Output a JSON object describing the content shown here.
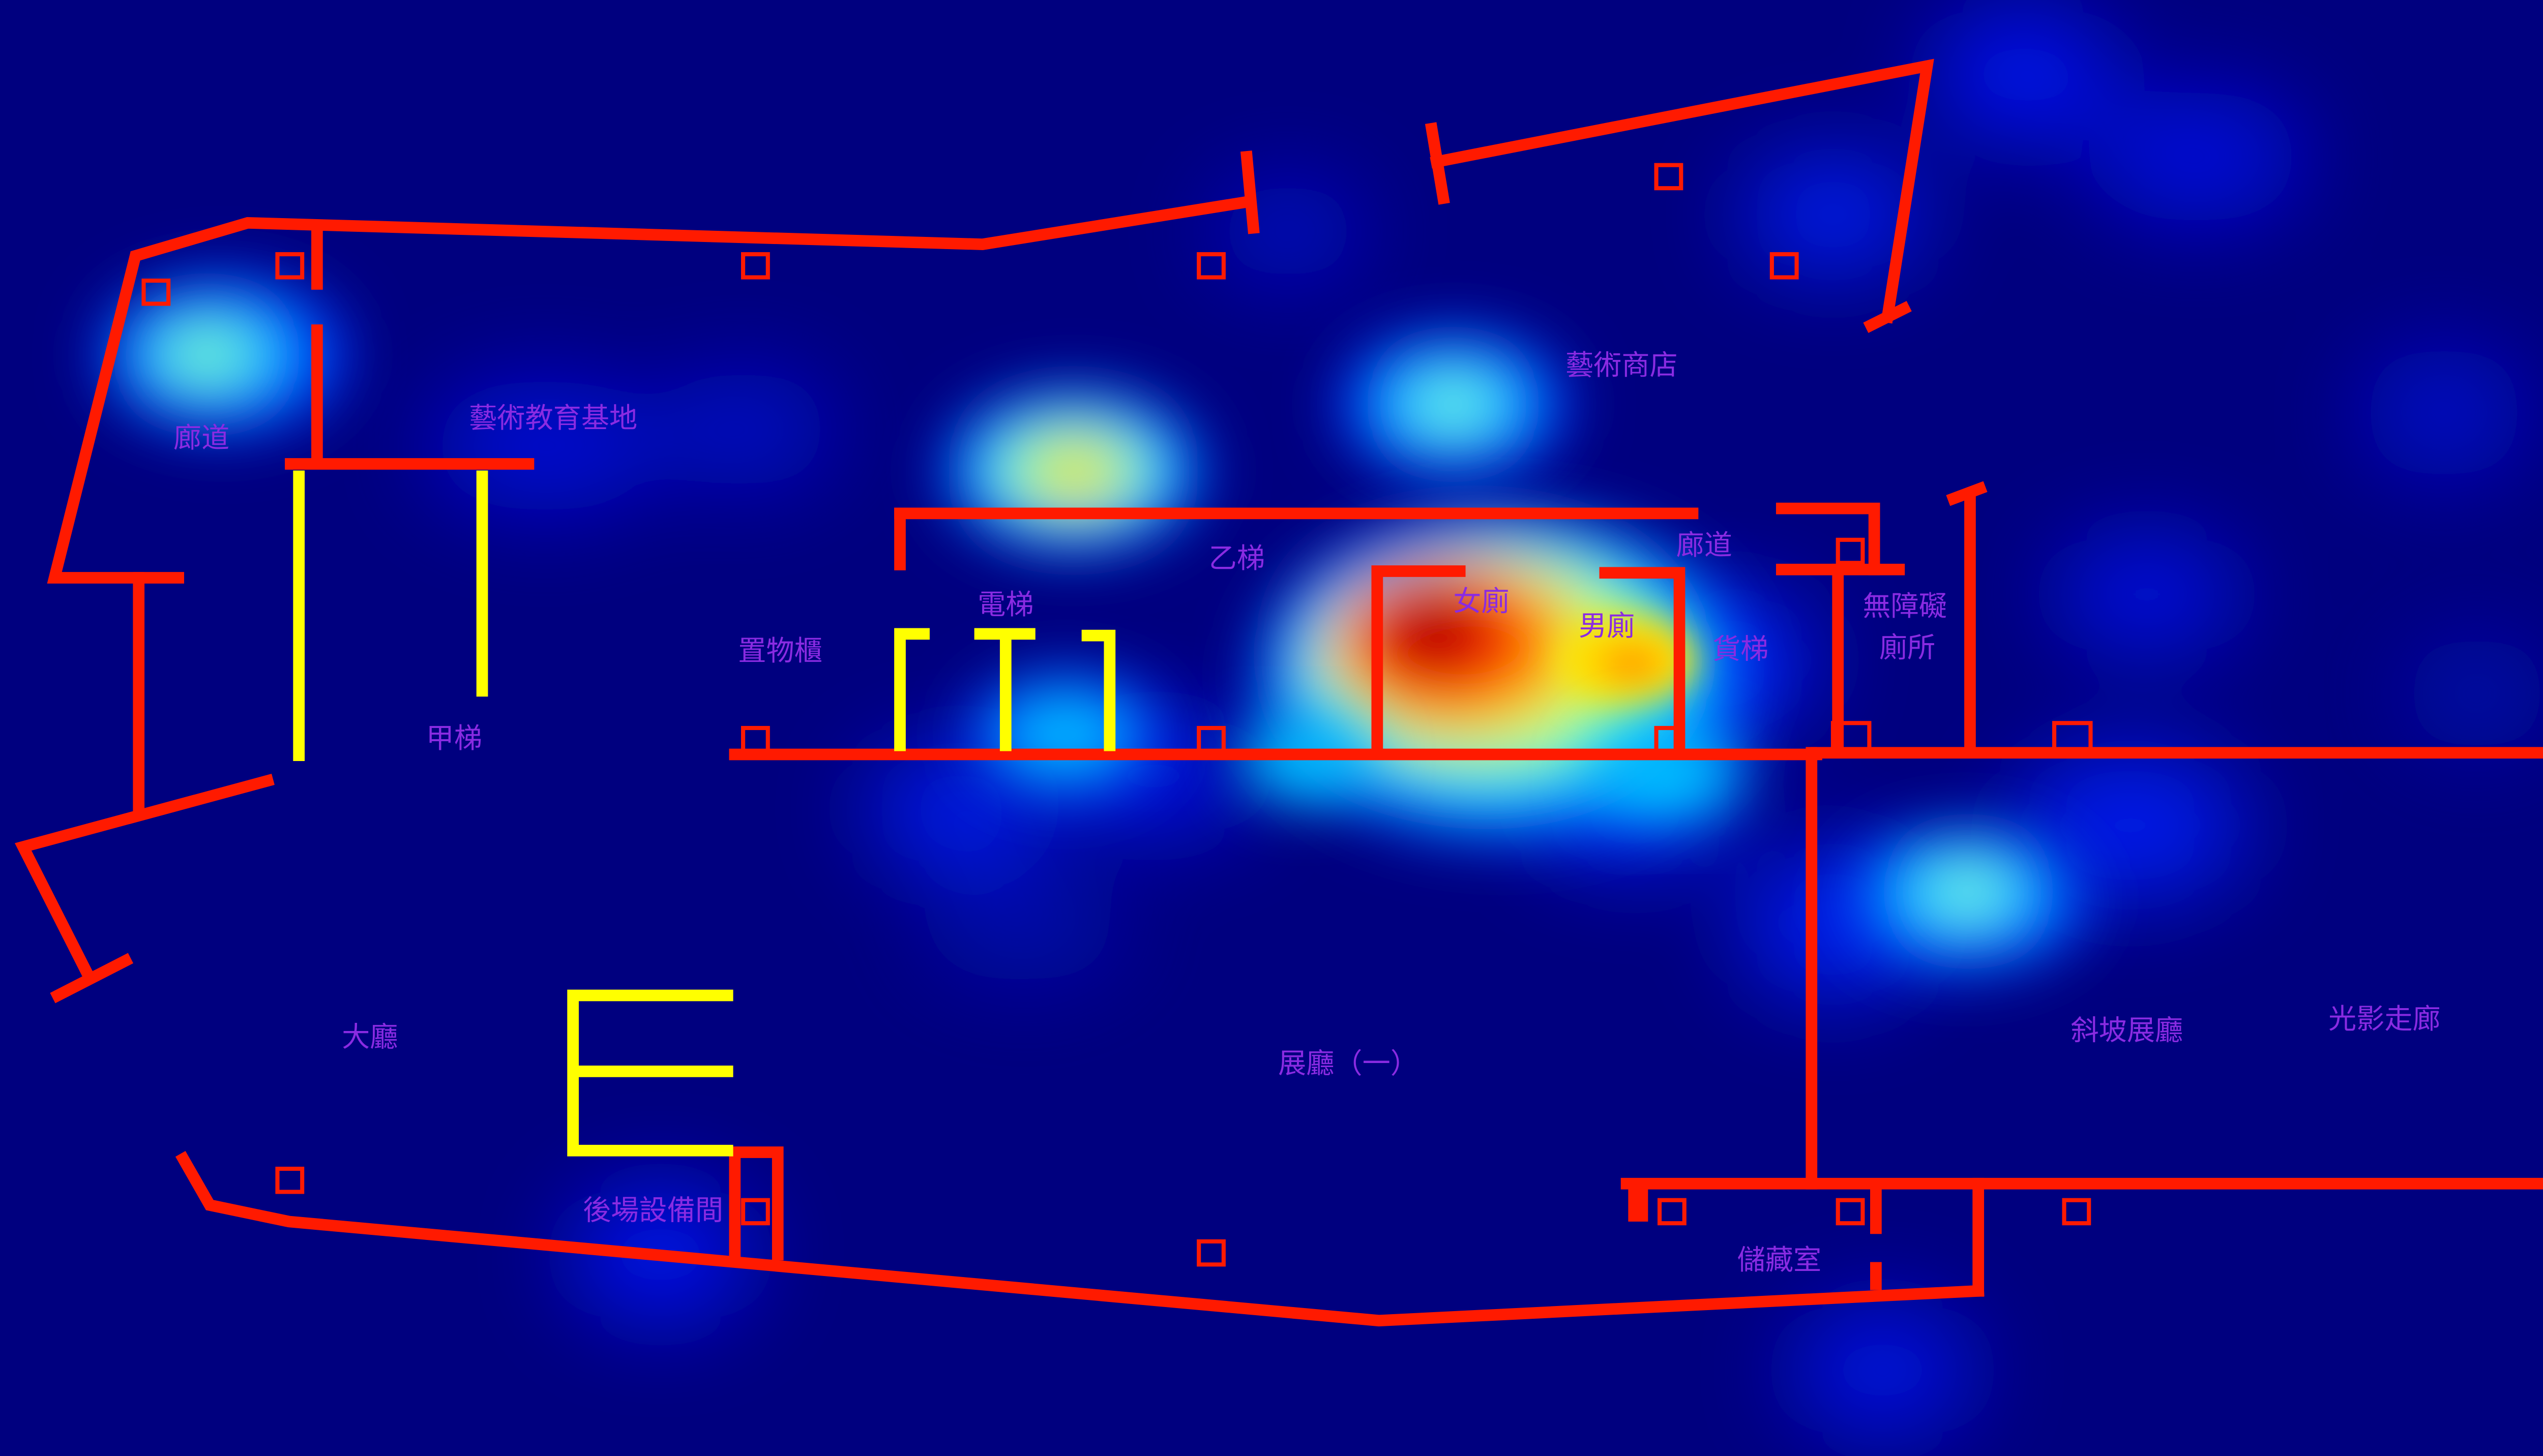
{
  "map": {
    "type": "floor-plan-heatmap",
    "colors": {
      "background": "#00007f",
      "wall": "#ff1a00",
      "stairs": "#ffff00",
      "label": "#8a2be2",
      "heat_scale": [
        "#00007f",
        "#0000ff",
        "#00ffff",
        "#ffff00",
        "#ff0000",
        "#8b0000"
      ]
    },
    "rooms": {
      "corridor_west": "廊道",
      "art_education": "藝術教育基地",
      "art_shop": "藝術商店",
      "stair_b": "乙梯",
      "corridor_north": "廊道",
      "elevator": "電梯",
      "womens_restroom": "女廁",
      "mens_restroom": "男廁",
      "freight_elevator": "貨梯",
      "accessible_restroom_line1": "無障礙",
      "accessible_restroom_line2": "廁所",
      "lockers": "置物櫃",
      "stair_a": "甲梯",
      "lobby": "大廳",
      "gallery_one": "展廳（一）",
      "ramp_gallery": "斜坡展廳",
      "light_corridor": "光影走廊",
      "backstage": "後場設備間",
      "storage": "儲藏室"
    },
    "heat_levels": {
      "womens_restroom": 1.0,
      "mens_restroom": 0.75,
      "elevator_front": 0.7,
      "art_shop": 0.5,
      "corridor_west": 0.5,
      "ramp_gallery_entrance": 0.5
    }
  }
}
